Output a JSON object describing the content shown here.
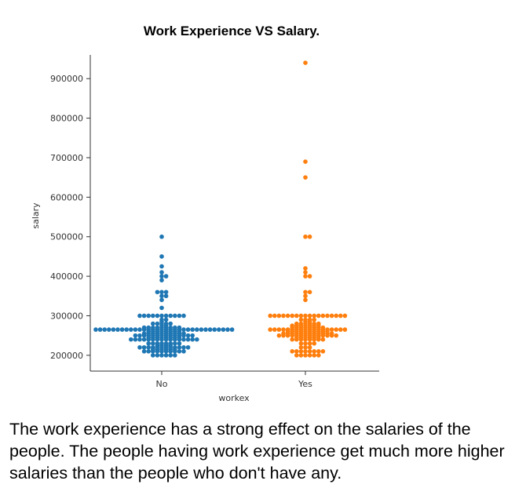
{
  "chart_data": {
    "type": "scatter",
    "title": "Work Experience VS Salary.",
    "xlabel": "workex",
    "ylabel": "salary",
    "categories": [
      "No",
      "Yes"
    ],
    "ylim": [
      160000,
      960000
    ],
    "yticks": [
      200000,
      300000,
      400000,
      500000,
      600000,
      700000,
      800000,
      900000
    ],
    "series": [
      {
        "category": "No",
        "color": "#1f77b4",
        "values": [
          500000,
          450000,
          425000,
          410000,
          400000,
          400000,
          390000,
          360000,
          360000,
          360000,
          350000,
          350000,
          340000,
          320000,
          300000,
          300000,
          300000,
          300000,
          300000,
          300000,
          300000,
          300000,
          300000,
          300000,
          300000,
          290000,
          290000,
          285000,
          280000,
          280000,
          280000,
          280000,
          280000,
          275000,
          275000,
          270000,
          270000,
          270000,
          270000,
          270000,
          270000,
          270000,
          270000,
          270000,
          265000,
          265000,
          265000,
          265000,
          265000,
          265000,
          265000,
          265000,
          265000,
          265000,
          265000,
          265000,
          265000,
          265000,
          265000,
          265000,
          265000,
          265000,
          265000,
          265000,
          265000,
          265000,
          265000,
          265000,
          265000,
          265000,
          265000,
          265000,
          265000,
          265000,
          265000,
          265000,
          260000,
          260000,
          260000,
          260000,
          260000,
          260000,
          260000,
          260000,
          255000,
          255000,
          255000,
          255000,
          255000,
          255000,
          255000,
          255000,
          255000,
          255000,
          250000,
          250000,
          250000,
          250000,
          250000,
          250000,
          250000,
          250000,
          250000,
          250000,
          250000,
          250000,
          250000,
          250000,
          245000,
          245000,
          245000,
          245000,
          245000,
          245000,
          245000,
          245000,
          240000,
          240000,
          240000,
          240000,
          240000,
          240000,
          240000,
          240000,
          240000,
          240000,
          240000,
          240000,
          240000,
          240000,
          240000,
          240000,
          230000,
          230000,
          230000,
          230000,
          230000,
          230000,
          230000,
          230000,
          225000,
          225000,
          225000,
          225000,
          220000,
          220000,
          220000,
          220000,
          220000,
          220000,
          220000,
          220000,
          220000,
          220000,
          220000,
          220000,
          215000,
          215000,
          215000,
          215000,
          215000,
          215000,
          210000,
          210000,
          210000,
          210000,
          210000,
          210000,
          210000,
          210000,
          210000,
          210000,
          200000,
          200000,
          200000,
          200000,
          200000,
          200000
        ]
      },
      {
        "category": "Yes",
        "color": "#ff7f0e",
        "values": [
          940000,
          690000,
          650000,
          500000,
          500000,
          420000,
          410000,
          400000,
          400000,
          360000,
          360000,
          350000,
          340000,
          300000,
          300000,
          300000,
          300000,
          300000,
          300000,
          300000,
          300000,
          300000,
          300000,
          300000,
          300000,
          300000,
          300000,
          300000,
          300000,
          300000,
          300000,
          290000,
          290000,
          290000,
          290000,
          285000,
          285000,
          280000,
          280000,
          280000,
          280000,
          280000,
          280000,
          275000,
          275000,
          275000,
          275000,
          275000,
          275000,
          275000,
          270000,
          270000,
          270000,
          270000,
          270000,
          270000,
          270000,
          270000,
          265000,
          265000,
          265000,
          265000,
          265000,
          265000,
          265000,
          265000,
          265000,
          265000,
          265000,
          265000,
          265000,
          265000,
          265000,
          265000,
          265000,
          265000,
          260000,
          260000,
          260000,
          260000,
          260000,
          260000,
          260000,
          260000,
          260000,
          260000,
          255000,
          255000,
          255000,
          255000,
          255000,
          255000,
          255000,
          255000,
          255000,
          255000,
          255000,
          255000,
          250000,
          250000,
          250000,
          250000,
          250000,
          250000,
          250000,
          250000,
          250000,
          250000,
          250000,
          250000,
          250000,
          250000,
          245000,
          245000,
          245000,
          245000,
          245000,
          245000,
          240000,
          240000,
          240000,
          240000,
          240000,
          240000,
          240000,
          240000,
          230000,
          230000,
          230000,
          230000,
          220000,
          220000,
          220000,
          210000,
          210000,
          210000,
          210000,
          210000,
          210000,
          210000,
          210000,
          200000,
          200000,
          200000,
          200000,
          200000,
          200000
        ]
      }
    ]
  },
  "caption": "The work experience has a strong effect on the salaries of the people. The people having work experience get much more higher salaries than the people who don't have any."
}
